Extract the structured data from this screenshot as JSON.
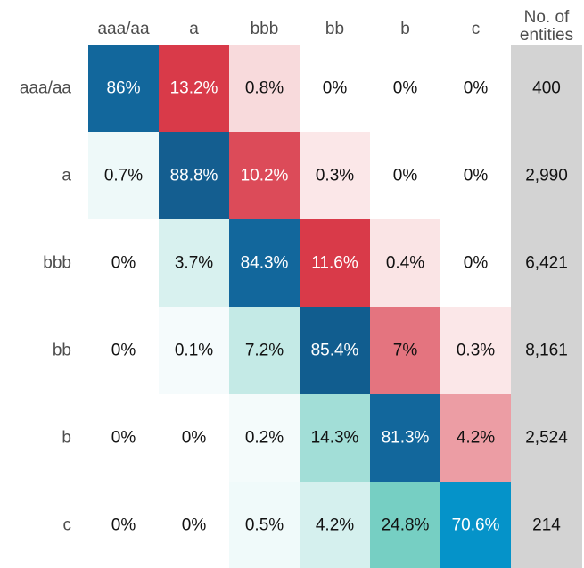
{
  "chart_data": {
    "type": "heatmap",
    "columns": [
      "aaa/aa",
      "a",
      "bbb",
      "bb",
      "b",
      "c"
    ],
    "rows": [
      "aaa/aa",
      "a",
      "bbb",
      "bb",
      "b",
      "c"
    ],
    "values": [
      [
        86,
        13.2,
        0.8,
        0,
        0,
        0
      ],
      [
        0.7,
        88.8,
        10.2,
        0.3,
        0,
        0
      ],
      [
        0,
        3.7,
        84.3,
        11.6,
        0.4,
        0
      ],
      [
        0,
        0.1,
        7.2,
        85.4,
        7,
        0.3
      ],
      [
        0,
        0,
        0.2,
        14.3,
        81.3,
        4.2
      ],
      [
        0,
        0,
        0.5,
        4.2,
        24.8,
        70.6
      ]
    ],
    "cell_labels": [
      [
        "86%",
        "13.2%",
        "0.8%",
        "0%",
        "0%",
        "0%"
      ],
      [
        "0.7%",
        "88.8%",
        "10.2%",
        "0.3%",
        "0%",
        "0%"
      ],
      [
        "0%",
        "3.7%",
        "84.3%",
        "11.6%",
        "0.4%",
        "0%"
      ],
      [
        "0%",
        "0.1%",
        "7.2%",
        "85.4%",
        "7%",
        "0.3%"
      ],
      [
        "0%",
        "0%",
        "0.2%",
        "14.3%",
        "81.3%",
        "4.2%"
      ],
      [
        "0%",
        "0%",
        "0.5%",
        "4.2%",
        "24.8%",
        "70.6%"
      ]
    ],
    "count_column": {
      "header_lines": [
        "No. of",
        "entities"
      ],
      "values": [
        "400",
        "2,990",
        "6,421",
        "8,161",
        "2,524",
        "214"
      ],
      "color": "#d3d3d3"
    },
    "colors": {
      "diagonal": [
        "#12679c",
        "#145e90",
        "#12679c",
        "#115d8f",
        "#12679c",
        "#0593c9"
      ],
      "upper": {
        "light": "#fdf3f3",
        "strong": "#d93a49"
      },
      "lower": {
        "light": "#f7fcfd",
        "strong": "#76cfc3"
      }
    }
  }
}
